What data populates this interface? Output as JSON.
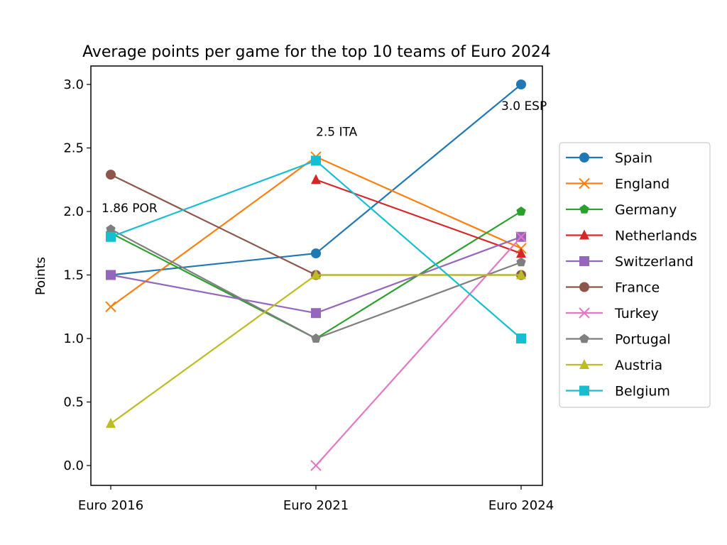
{
  "chart_data": {
    "type": "line",
    "title": "Average points per game for the top 10 teams of Euro 2024",
    "xlabel": "",
    "ylabel": "Points",
    "categories": [
      "Euro 2016",
      "Euro 2021",
      "Euro 2024"
    ],
    "ylim": [
      -0.15,
      3.15
    ],
    "yticks": [
      0.0,
      0.5,
      1.0,
      1.5,
      2.0,
      2.5,
      3.0
    ],
    "ytick_labels": [
      "0.0",
      "0.5",
      "1.0",
      "1.5",
      "2.0",
      "2.5",
      "3.0"
    ],
    "grid": false,
    "legend_position": "center-right-outside",
    "series": [
      {
        "name": "Spain",
        "color": "#1f77b4",
        "marker": "circle",
        "values": [
          1.5,
          1.67,
          3.0
        ]
      },
      {
        "name": "England",
        "color": "#ff7f0e",
        "marker": "x",
        "values": [
          1.25,
          2.43,
          1.71
        ]
      },
      {
        "name": "Germany",
        "color": "#2ca02c",
        "marker": "pentagon",
        "values": [
          1.83,
          1.0,
          2.0
        ]
      },
      {
        "name": "Netherlands",
        "color": "#d62728",
        "marker": "triangle",
        "values": [
          null,
          2.25,
          1.67
        ]
      },
      {
        "name": "Switzerland",
        "color": "#9467bd",
        "marker": "square",
        "values": [
          1.5,
          1.2,
          1.8
        ]
      },
      {
        "name": "France",
        "color": "#8c564b",
        "marker": "circle",
        "values": [
          2.29,
          1.5,
          1.5
        ]
      },
      {
        "name": "Turkey",
        "color": "#e377c2",
        "marker": "x",
        "values": [
          null,
          0.0,
          1.8
        ]
      },
      {
        "name": "Portugal",
        "color": "#7f7f7f",
        "marker": "pentagon",
        "values": [
          1.86,
          1.0,
          1.6
        ]
      },
      {
        "name": "Austria",
        "color": "#bcbd22",
        "marker": "triangle",
        "values": [
          0.33,
          1.5,
          1.5
        ]
      },
      {
        "name": "Belgium",
        "color": "#17becf",
        "marker": "square",
        "values": [
          1.8,
          2.4,
          1.0
        ]
      }
    ],
    "annotations": [
      {
        "text": "1.86 POR",
        "category_index": 0,
        "value": 1.86
      },
      {
        "text": "2.5 ITA",
        "category_index": 1,
        "value": 2.5
      },
      {
        "text": "3.0 ESP",
        "category_index": 2,
        "value": 3.0
      }
    ]
  }
}
